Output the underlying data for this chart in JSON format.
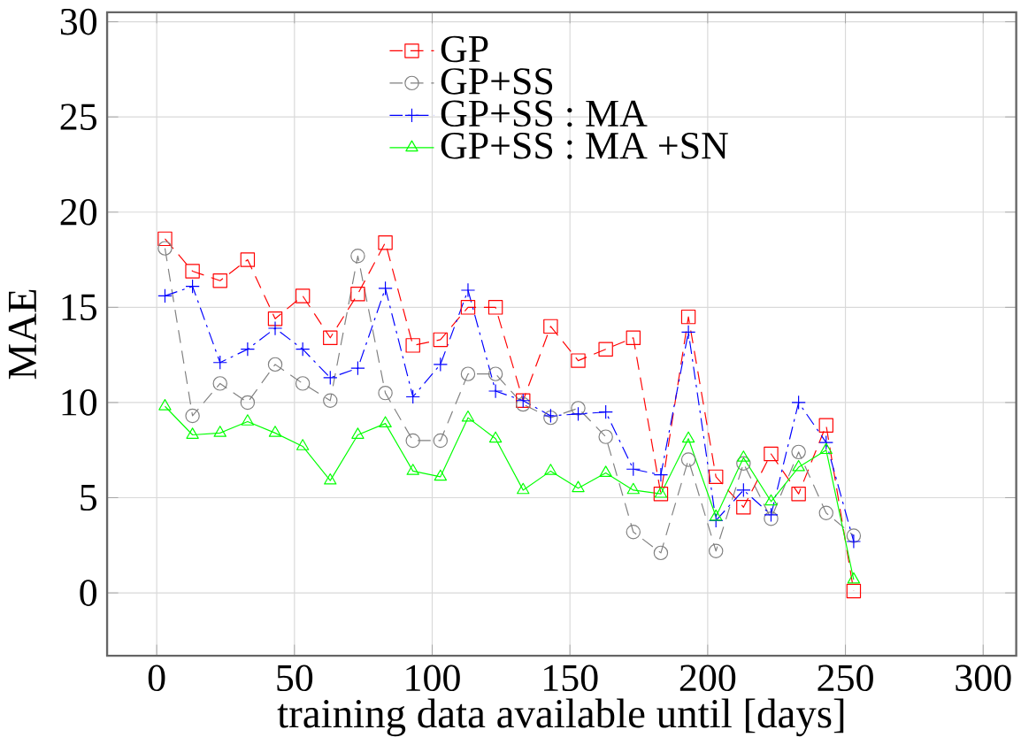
{
  "chart_data": {
    "type": "line",
    "xlabel": "training data available until [days]",
    "ylabel": "MAE",
    "x": [
      3,
      13,
      23,
      33,
      43,
      53,
      63,
      73,
      83,
      93,
      103,
      113,
      123,
      133,
      143,
      153,
      163,
      173,
      183,
      193,
      203,
      213,
      223,
      233,
      243,
      253
    ],
    "series": [
      {
        "name": "GP",
        "color": "#ff0000",
        "marker": "square",
        "line_style": "dashed",
        "values": [
          18.6,
          16.9,
          16.4,
          17.5,
          14.4,
          15.6,
          13.4,
          15.7,
          18.4,
          13.0,
          13.3,
          15.0,
          15.0,
          10.1,
          14.0,
          12.2,
          12.8,
          13.4,
          5.2,
          14.5,
          6.1,
          4.5,
          7.3,
          5.2,
          8.8,
          0.1
        ]
      },
      {
        "name": "GP+SS",
        "color": "#808080",
        "marker": "circle",
        "line_style": "dashed",
        "values": [
          18.1,
          9.3,
          11.0,
          10.0,
          12.0,
          11.0,
          10.1,
          17.7,
          10.5,
          8.0,
          8.0,
          11.5,
          11.5,
          9.9,
          9.2,
          9.7,
          8.2,
          3.2,
          2.1,
          7.0,
          2.2,
          6.8,
          3.9,
          7.4,
          4.2,
          3.0
        ]
      },
      {
        "name": "GP+SS : MA",
        "color": "#0000ff",
        "marker": "cross",
        "line_style": "dashdot",
        "values": [
          15.6,
          16.1,
          12.1,
          12.8,
          13.9,
          12.8,
          11.3,
          11.8,
          16.0,
          10.3,
          12.0,
          15.9,
          10.6,
          10.1,
          9.3,
          9.4,
          9.5,
          6.5,
          6.2,
          13.7,
          3.8,
          5.4,
          4.1,
          10.0,
          7.9,
          2.7
        ]
      },
      {
        "name": "GP+SS : MA +SN",
        "color": "#00ff00",
        "marker": "triangle",
        "line_style": "solid",
        "values": [
          9.8,
          8.3,
          8.4,
          9.0,
          8.4,
          7.7,
          5.9,
          8.3,
          8.9,
          6.4,
          6.1,
          9.2,
          8.1,
          5.4,
          6.4,
          5.5,
          6.3,
          5.4,
          5.2,
          8.1,
          4.0,
          7.1,
          4.8,
          6.6,
          7.5,
          0.7
        ]
      }
    ],
    "xlim": [
      -18,
      312
    ],
    "ylim": [
      -3.3,
      30.5
    ],
    "xticks": [
      0,
      50,
      100,
      150,
      200,
      250,
      300
    ],
    "yticks": [
      0,
      5,
      10,
      15,
      20,
      25,
      30
    ],
    "grid": true,
    "legend": "top"
  }
}
